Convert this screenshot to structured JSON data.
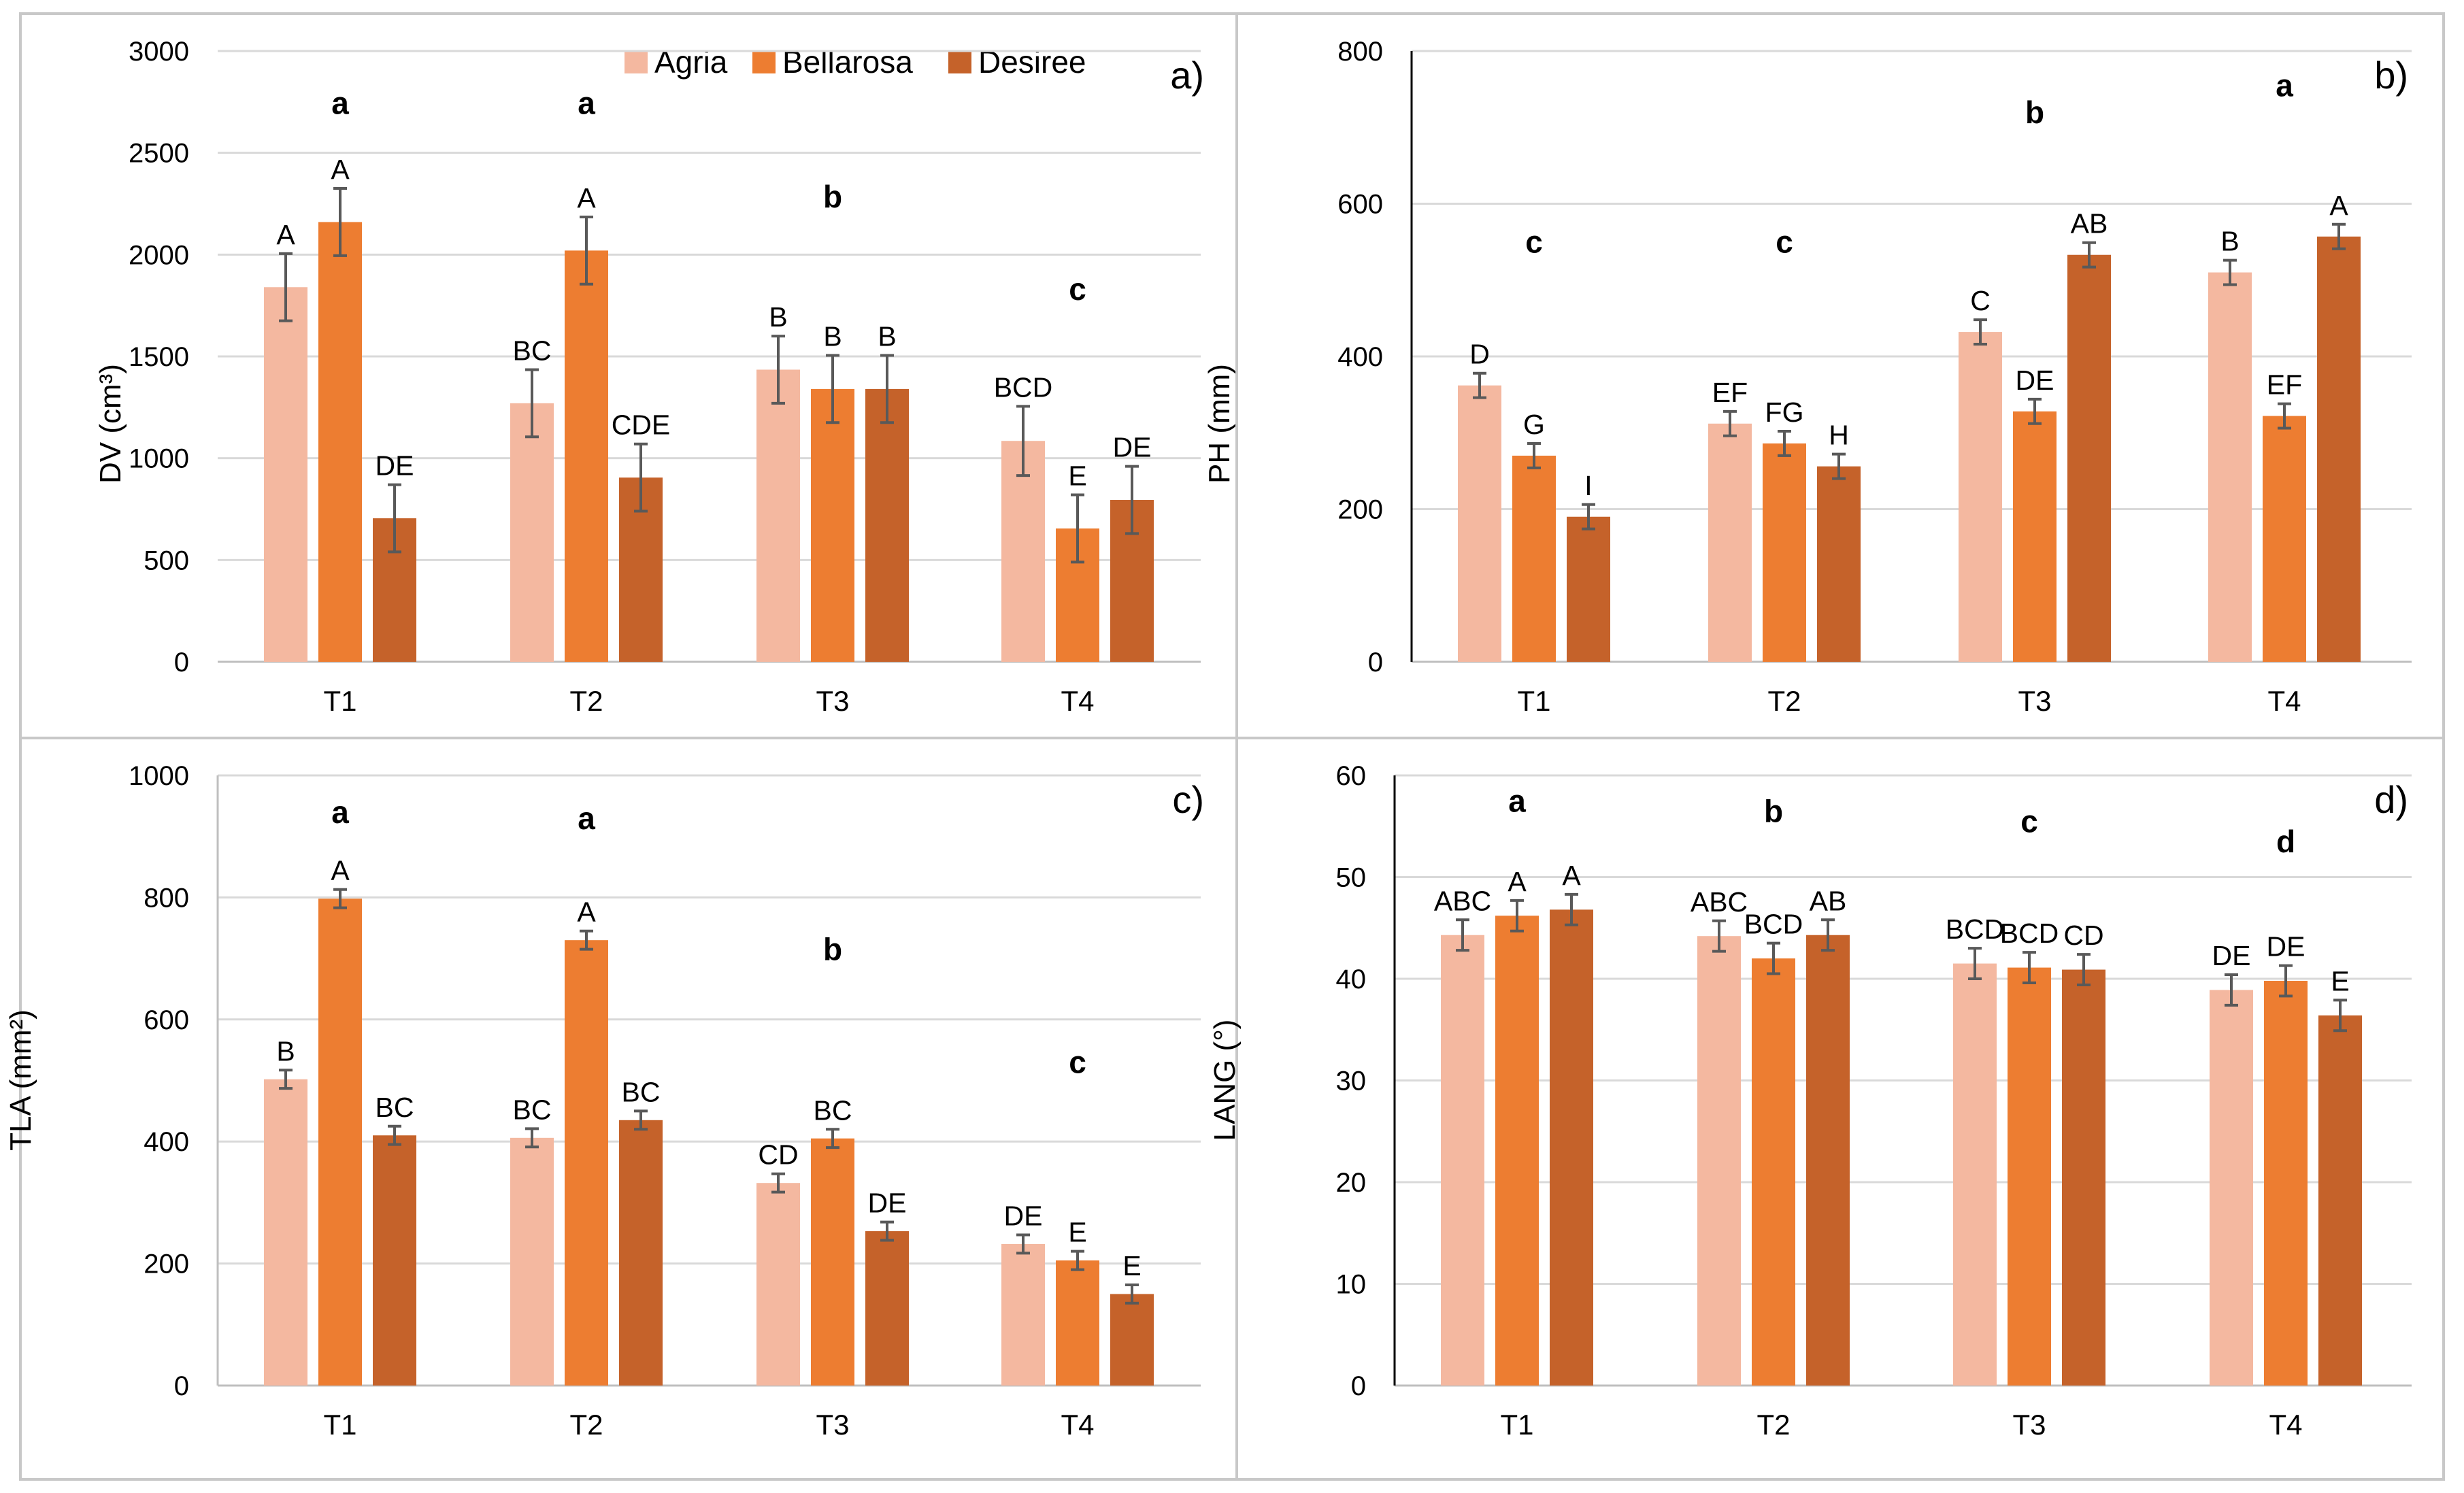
{
  "figure": {
    "legend": [
      {
        "name": "Agria",
        "color": "#F4B8A0"
      },
      {
        "name": "Bellarosa",
        "color": "#ED7D31"
      },
      {
        "name": "Desiree",
        "color": "#C5622A"
      }
    ]
  },
  "chart_data": [
    {
      "type": "bar",
      "panel": "a)",
      "ylabel": "DV (cm³)",
      "ylim": [
        0,
        3000
      ],
      "yticks": [
        0,
        500,
        1000,
        1500,
        2000,
        2500,
        3000
      ],
      "categories": [
        "T1",
        "T2",
        "T3",
        "T4"
      ],
      "series": [
        {
          "name": "Agria",
          "values": [
            1840,
            1270,
            1435,
            1085
          ],
          "errors": [
            165,
            165,
            165,
            170
          ],
          "letters": [
            "A",
            "BC",
            "B",
            "BCD"
          ]
        },
        {
          "name": "Bellarosa",
          "values": [
            2160,
            2020,
            1340,
            655
          ],
          "errors": [
            165,
            165,
            165,
            165
          ],
          "letters": [
            "A",
            "A",
            "B",
            "E"
          ]
        },
        {
          "name": "Desiree",
          "values": [
            705,
            905,
            1340,
            795
          ],
          "errors": [
            165,
            165,
            165,
            165
          ],
          "letters": [
            "DE",
            "CDE",
            "B",
            "DE"
          ]
        }
      ],
      "group_letters": [
        "a",
        "a",
        "b",
        "c"
      ],
      "group_letter_values": [
        2745,
        2745,
        2285,
        1830
      ]
    },
    {
      "type": "bar",
      "panel": "b)",
      "ylabel": "PH (mm)",
      "ylim": [
        0,
        800
      ],
      "yticks": [
        0,
        200,
        400,
        600,
        800
      ],
      "categories": [
        "T1",
        "T2",
        "T3",
        "T4"
      ],
      "series": [
        {
          "name": "Agria",
          "values": [
            362,
            312,
            432,
            510
          ],
          "errors": [
            16,
            16,
            16,
            16
          ],
          "letters": [
            "D",
            "EF",
            "C",
            "B"
          ]
        },
        {
          "name": "Bellarosa",
          "values": [
            270,
            286,
            328,
            322
          ],
          "errors": [
            16,
            16,
            16,
            16
          ],
          "letters": [
            "G",
            "FG",
            "DE",
            "EF"
          ]
        },
        {
          "name": "Desiree",
          "values": [
            190,
            256,
            533,
            557
          ],
          "errors": [
            16,
            16,
            16,
            16
          ],
          "letters": [
            "I",
            "H",
            "AB",
            "A"
          ]
        }
      ],
      "group_letters": [
        "c",
        "c",
        "b",
        "a"
      ],
      "group_letter_values": [
        550,
        550,
        720,
        755
      ]
    },
    {
      "type": "bar",
      "panel": "c)",
      "ylabel": "TLA (mm²)",
      "ylim": [
        0,
        1000
      ],
      "yticks": [
        0,
        200,
        400,
        600,
        800,
        1000
      ],
      "categories": [
        "T1",
        "T2",
        "T3",
        "T4"
      ],
      "series": [
        {
          "name": "Agria",
          "values": [
            502,
            406,
            332,
            232
          ],
          "errors": [
            15,
            15,
            15,
            15
          ],
          "letters": [
            "B",
            "BC",
            "CD",
            "DE"
          ]
        },
        {
          "name": "Bellarosa",
          "values": [
            798,
            730,
            405,
            205
          ],
          "errors": [
            15,
            15,
            15,
            15
          ],
          "letters": [
            "A",
            "A",
            "BC",
            "E"
          ]
        },
        {
          "name": "Desiree",
          "values": [
            410,
            435,
            253,
            150
          ],
          "errors": [
            15,
            15,
            15,
            15
          ],
          "letters": [
            "BC",
            "BC",
            "DE",
            "E"
          ]
        }
      ],
      "group_letters": [
        "a",
        "a",
        "b",
        "c"
      ],
      "group_letter_values": [
        940,
        930,
        715,
        530
      ]
    },
    {
      "type": "bar",
      "panel": "d)",
      "ylabel": "LANG (°)",
      "ylim": [
        0,
        60
      ],
      "yticks": [
        0,
        10,
        20,
        30,
        40,
        50,
        60
      ],
      "categories": [
        "T1",
        "T2",
        "T3",
        "T4"
      ],
      "series": [
        {
          "name": "Agria",
          "values": [
            44.3,
            44.2,
            41.5,
            38.9
          ],
          "errors": [
            1.5,
            1.5,
            1.5,
            1.5
          ],
          "letters": [
            "ABC",
            "ABC",
            "BCD",
            "DE"
          ]
        },
        {
          "name": "Bellarosa",
          "values": [
            46.2,
            42.0,
            41.1,
            39.8
          ],
          "errors": [
            1.5,
            1.5,
            1.5,
            1.5
          ],
          "letters": [
            "A",
            "BCD",
            "BCD",
            "DE"
          ]
        },
        {
          "name": "Desiree",
          "values": [
            46.8,
            44.3,
            40.9,
            36.4
          ],
          "errors": [
            1.5,
            1.5,
            1.5,
            1.5
          ],
          "letters": [
            "A",
            "AB",
            "CD",
            "E"
          ]
        }
      ],
      "group_letters": [
        "a",
        "b",
        "c",
        "d"
      ],
      "group_letter_values": [
        57.5,
        56.5,
        55.5,
        53.5
      ]
    }
  ]
}
